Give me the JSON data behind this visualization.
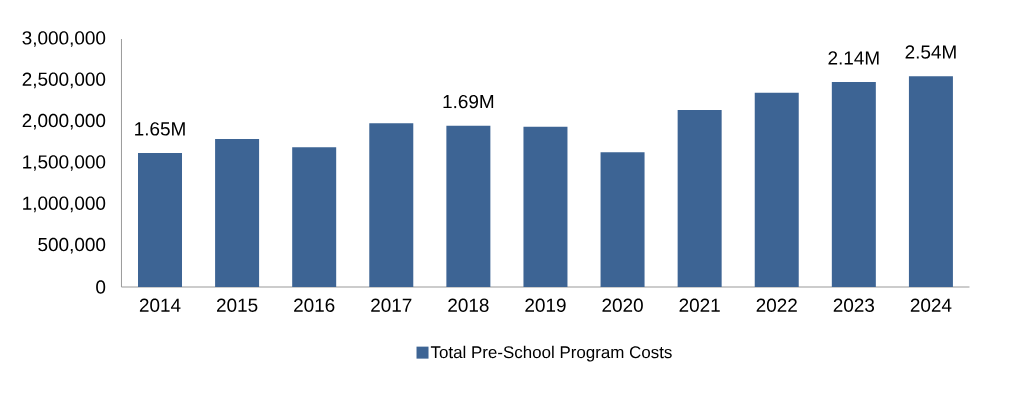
{
  "chart_data": {
    "type": "bar",
    "categories": [
      "2014",
      "2015",
      "2016",
      "2017",
      "2018",
      "2019",
      "2020",
      "2021",
      "2022",
      "2023",
      "2024"
    ],
    "series": [
      {
        "name": "Total Pre-School Program Costs",
        "color": "#3d6494",
        "values": [
          1620000,
          1790000,
          1690000,
          1980000,
          1950000,
          1940000,
          1630000,
          2140000,
          2350000,
          2480000,
          2550000
        ]
      }
    ],
    "ylim": [
      0,
      3000000
    ],
    "yticks": [
      0,
      {
        "value": 500000,
        "label": "500,000"
      },
      {
        "value": 1000000,
        "label": "1,000,000"
      },
      {
        "value": 1500000,
        "label": "1,500,000"
      },
      {
        "value": 2000000,
        "label": "2,000,000"
      },
      {
        "value": 2500000,
        "label": "2,500,000"
      },
      {
        "value": 3000000,
        "label": "3,000,000"
      }
    ],
    "annotations": [
      {
        "text": "1.65M",
        "x": "2014",
        "y": 1620000
      },
      {
        "text": "1.69M",
        "x": "2018",
        "y": 1950000
      },
      {
        "text": "2.14M",
        "x": "2023",
        "y": 2480000
      },
      {
        "text": "2.54M",
        "x": "2024",
        "y": 2550000
      }
    ],
    "grid": false,
    "legend": "bottom"
  }
}
